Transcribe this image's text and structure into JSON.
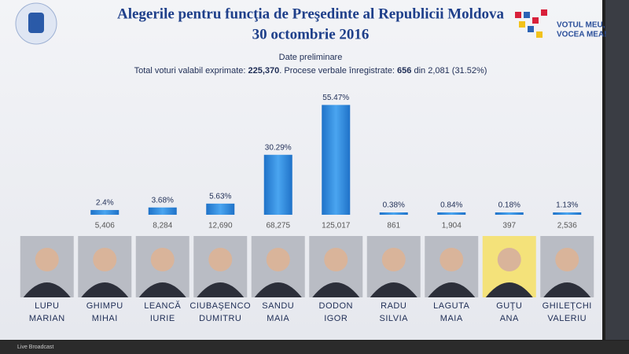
{
  "chart_data": {
    "type": "bar",
    "title": "Alegerile pentru funcţia de Preşedinte al Republicii Moldova",
    "date": "30 octombrie 2016",
    "subtitle": "Date preliminare",
    "summary": [
      "Total voturi valabil exprimate: ",
      "225,370",
      ". Procese verbale înregistrate: ",
      "656",
      " din 2,081 (31.52%)"
    ],
    "logo_text": [
      "VOTUL MEU,",
      "VOCEA MEA!"
    ],
    "categories": [
      [
        "LUPU",
        "MARIAN"
      ],
      [
        "GHIMPU",
        "MIHAI"
      ],
      [
        "LEANCĂ",
        "IURIE"
      ],
      [
        "CIUBAŞENCO",
        "DUMITRU"
      ],
      [
        "SANDU",
        "MAIA"
      ],
      [
        "DODON",
        "IGOR"
      ],
      [
        "RADU",
        "SILVIA"
      ],
      [
        "LAGUTA",
        "MAIA"
      ],
      [
        "GUŢU",
        "ANA"
      ],
      [
        "GHILEŢCHI",
        "VALERIU"
      ]
    ],
    "values": [
      null,
      2.4,
      3.68,
      5.63,
      30.29,
      55.47,
      0.38,
      0.84,
      0.18,
      1.13
    ],
    "value_labels": [
      null,
      "2.4%",
      "3.68%",
      "5.63%",
      "30.29%",
      "55.47%",
      "0.38%",
      "0.84%",
      "0.18%",
      "1.13%"
    ],
    "vote_counts": [
      null,
      "5,406",
      "8,284",
      "12,690",
      "68,275",
      "125,017",
      "861",
      "1,904",
      "397",
      "2,536"
    ],
    "color": "#2f8de4",
    "ylim": [
      0,
      60
    ],
    "footer": "Live Broadcast"
  }
}
